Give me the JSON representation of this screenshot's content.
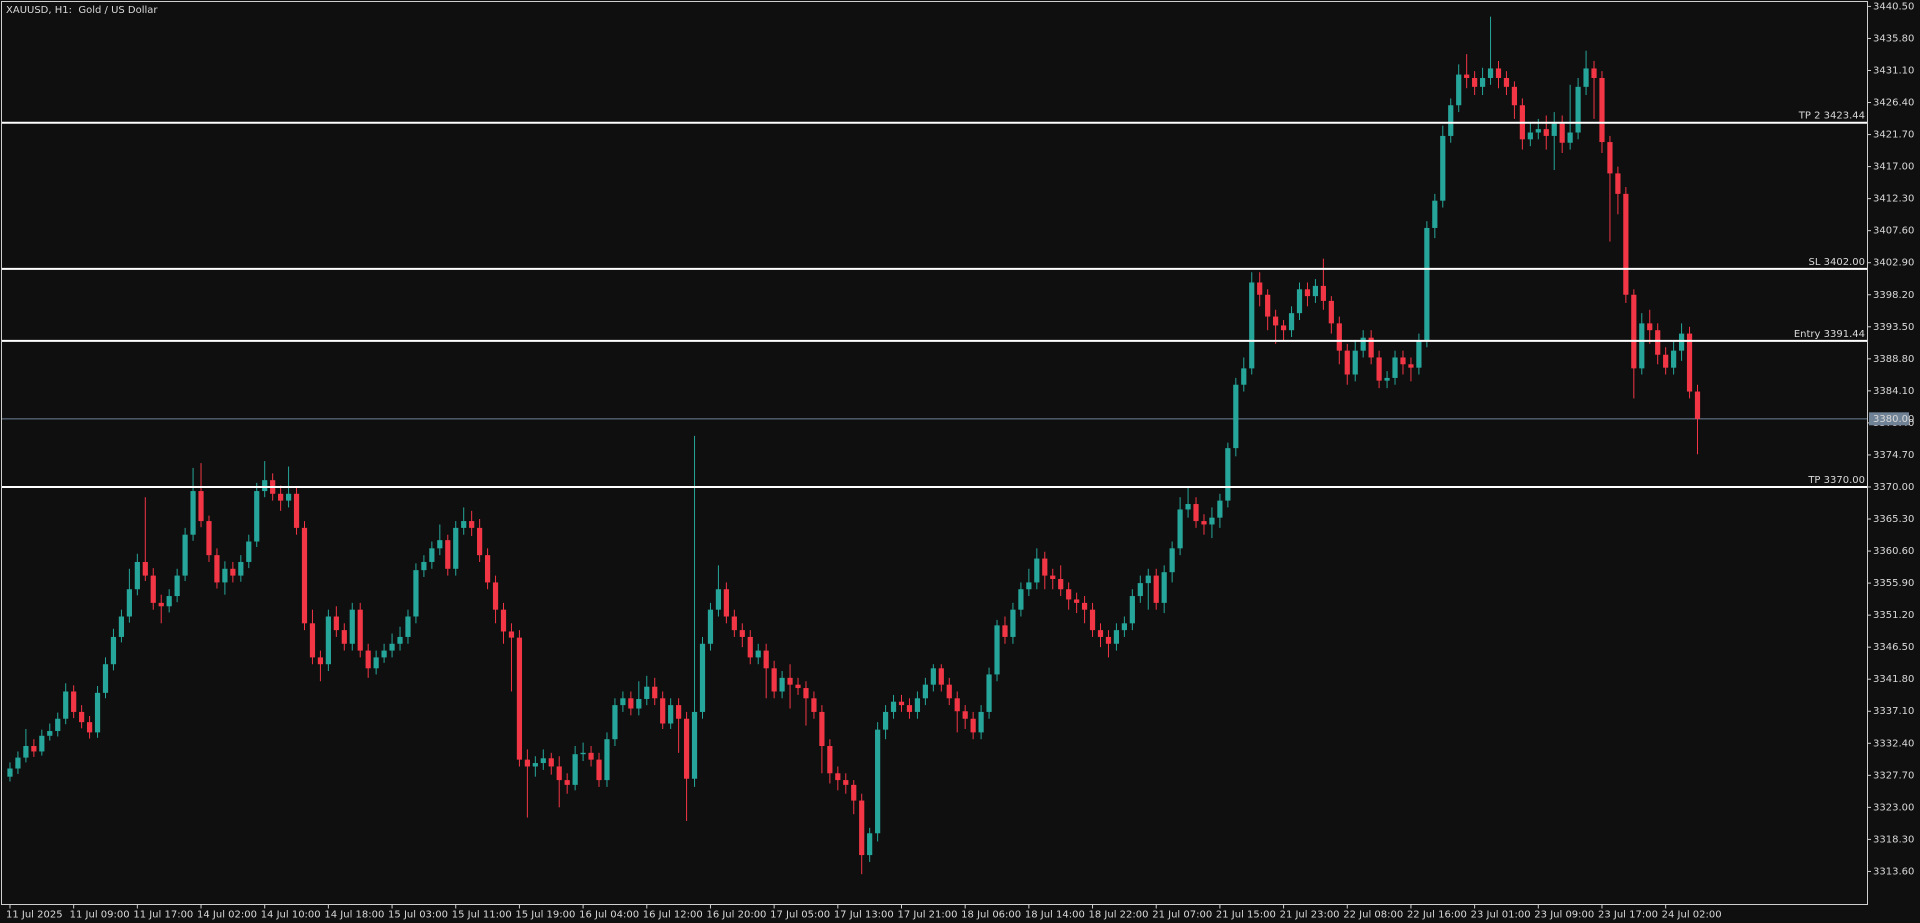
{
  "chart_data": {
    "type": "candlestick",
    "title": "XAUUSD, H1:  Gold / US Dollar",
    "categories": [
      "11 Jul 2025",
      null,
      null,
      null,
      null,
      null,
      null,
      null,
      "11 Jul 09:00",
      null,
      null,
      null,
      null,
      null,
      null,
      null,
      "11 Jul 17:00",
      null,
      null,
      null,
      null,
      null,
      null,
      null,
      "14 Jul 02:00",
      null,
      null,
      null,
      null,
      null,
      null,
      null,
      "14 Jul 10:00",
      null,
      null,
      null,
      null,
      null,
      null,
      null,
      "14 Jul 18:00",
      null,
      null,
      null,
      null,
      null,
      null,
      null,
      "15 Jul 03:00",
      null,
      null,
      null,
      null,
      null,
      null,
      null,
      "15 Jul 11:00",
      null,
      null,
      null,
      null,
      null,
      null,
      null,
      "15 Jul 19:00",
      null,
      null,
      null,
      null,
      null,
      null,
      null,
      "16 Jul 04:00",
      null,
      null,
      null,
      null,
      null,
      null,
      null,
      "16 Jul 12:00",
      null,
      null,
      null,
      null,
      null,
      null,
      null,
      "16 Jul 20:00",
      null,
      null,
      null,
      null,
      null,
      null,
      null,
      "17 Jul 05:00",
      null,
      null,
      null,
      null,
      null,
      null,
      null,
      "17 Jul 13:00",
      null,
      null,
      null,
      null,
      null,
      null,
      null,
      "17 Jul 21:00",
      null,
      null,
      null,
      null,
      null,
      null,
      null,
      "18 Jul 06:00",
      null,
      null,
      null,
      null,
      null,
      null,
      null,
      "18 Jul 14:00",
      null,
      null,
      null,
      null,
      null,
      null,
      null,
      "18 Jul 22:00",
      null,
      null,
      null,
      null,
      null,
      null,
      null,
      "21 Jul 07:00",
      null,
      null,
      null,
      null,
      null,
      null,
      null,
      "21 Jul 15:00",
      null,
      null,
      null,
      null,
      null,
      null,
      null,
      "21 Jul 23:00",
      null,
      null,
      null,
      null,
      null,
      null,
      null,
      "22 Jul 08:00",
      null,
      null,
      null,
      null,
      null,
      null,
      null,
      "22 Jul 16:00",
      null,
      null,
      null,
      null,
      null,
      null,
      null,
      "23 Jul 01:00",
      null,
      null,
      null,
      null,
      null,
      null,
      null,
      "23 Jul 09:00",
      null,
      null,
      null,
      null,
      null,
      null,
      null,
      "23 Jul 17:00",
      null,
      null,
      null,
      null,
      null,
      null,
      null,
      "24 Jul 02:00",
      null,
      null,
      null,
      null
    ],
    "open": [
      3327.5,
      3328.7,
      3330.3,
      3332,
      3331.2,
      3333.5,
      3334.2,
      3336,
      3340,
      3337,
      3335.5,
      3334,
      3339.8,
      3344,
      3348,
      3351,
      3355,
      3359,
      3357,
      3353,
      3352.5,
      3354,
      3357,
      3363,
      3369.4,
      3365,
      3360,
      3356,
      3358,
      3357,
      3359,
      3362,
      3369.4,
      3371,
      3369,
      3368,
      3369,
      3364,
      3350,
      3345,
      3344,
      3351,
      3349,
      3347,
      3352,
      3346,
      3343.4,
      3345,
      3346,
      3347,
      3348,
      3351,
      3357.8,
      3359,
      3361,
      3362.2,
      3358,
      3364,
      3365,
      3364,
      3360,
      3356,
      3352,
      3348.8,
      3347.9,
      3330,
      3329,
      3329.5,
      3330.2,
      3329,
      3327,
      3326.3,
      3330.8,
      3331,
      3330,
      3327,
      3333,
      3338,
      3339,
      3337.5,
      3338.9,
      3340.7,
      3339,
      3335.3,
      3338,
      3336,
      3327.2,
      3337,
      3347,
      3352,
      3355,
      3351,
      3349,
      3348,
      3345,
      3346,
      3343.4,
      3340,
      3342,
      3341,
      3340.5,
      3339,
      3337,
      3332,
      3328,
      3327,
      3326.3,
      3324,
      3316,
      3319.2,
      3334.4,
      3337,
      3338.5,
      3338,
      3337,
      3339,
      3341,
      3343.4,
      3341,
      3339,
      3337.1,
      3336,
      3334,
      3337,
      3342.5,
      3349.7,
      3348,
      3352,
      3355,
      3356,
      3359.5,
      3357,
      3356.5,
      3355,
      3353.5,
      3353,
      3352,
      3349,
      3348,
      3347,
      3349,
      3350,
      3354,
      3355.9,
      3357,
      3353,
      3357.5,
      3361,
      3366.7,
      3367.5,
      3365,
      3364.5,
      3365.5,
      3368,
      3375.7,
      3385,
      3387.4,
      3400,
      3398.2,
      3395,
      3393.7,
      3393,
      3395.5,
      3399,
      3398,
      3399.5,
      3397.3,
      3394,
      3390,
      3386.5,
      3390,
      3391.9,
      3389,
      3385.6,
      3386,
      3389,
      3388,
      3387.5,
      3391.5,
      3408,
      3412,
      3421.5,
      3426,
      3430.5,
      3430,
      3428.7,
      3430,
      3431.4,
      3430,
      3428.7,
      3426,
      3421,
      3422,
      3422.5,
      3421.5,
      3423.3,
      3420.5,
      3422,
      3428.7,
      3431.4,
      3430,
      3420.6,
      3416,
      3413,
      3398.2,
      3387.4,
      3394,
      3393,
      3389.4,
      3387.5,
      3390,
      3392.5,
      3384
    ],
    "high": [
      3329.6,
      3331.2,
      3334.5,
      3333,
      3334.4,
      3335.3,
      3336.9,
      3341.2,
      3340.9,
      3338,
      3336.4,
      3340.8,
      3345,
      3349.2,
      3352,
      3358,
      3360.2,
      3368.5,
      3358.1,
      3354.2,
      3355,
      3358,
      3364,
      3372.8,
      3373.5,
      3365.8,
      3361,
      3359.1,
      3359,
      3360,
      3363,
      3370.6,
      3373.8,
      3372,
      3370.2,
      3373,
      3370,
      3365,
      3352,
      3346,
      3352,
      3352.5,
      3350,
      3353,
      3353,
      3347,
      3346,
      3347,
      3348.5,
      3349.5,
      3352,
      3358.8,
      3360,
      3362,
      3364.5,
      3363,
      3365,
      3367,
      3366.5,
      3365.3,
      3361,
      3357,
      3353,
      3350,
      3349,
      3331.5,
      3330.5,
      3331.5,
      3331,
      3330.5,
      3328,
      3332,
      3332.5,
      3332,
      3331,
      3334,
      3339,
      3340,
      3340,
      3341.5,
      3342.3,
      3342,
      3340,
      3339,
      3339,
      3337,
      3377.5,
      3348,
      3353,
      3358.5,
      3356,
      3352,
      3350,
      3349,
      3347,
      3347,
      3344.5,
      3343,
      3344,
      3342,
      3341.5,
      3340,
      3338,
      3333,
      3329,
      3328,
      3327,
      3325,
      3320,
      3335.5,
      3338,
      3339.5,
      3339.5,
      3339,
      3340,
      3342,
      3344,
      3344,
      3342,
      3340,
      3338,
      3337,
      3338,
      3343.5,
      3350.5,
      3351,
      3353,
      3356,
      3358,
      3361,
      3360.5,
      3358,
      3358.5,
      3356,
      3354.5,
      3354,
      3353,
      3350,
      3349,
      3350,
      3351,
      3355,
      3357,
      3358,
      3358,
      3358.5,
      3362,
      3368.5,
      3370,
      3368.5,
      3366,
      3367,
      3369,
      3376.5,
      3386,
      3389,
      3401.5,
      3401.5,
      3399,
      3396,
      3394.5,
      3396.5,
      3400,
      3400,
      3400.5,
      3403.5,
      3398,
      3395,
      3391,
      3391.5,
      3393,
      3393,
      3390,
      3387,
      3390,
      3390,
      3389,
      3392.5,
      3409,
      3413,
      3423,
      3427,
      3432,
      3433.5,
      3431,
      3431.5,
      3439,
      3432.5,
      3431,
      3429.5,
      3427,
      3423.5,
      3424,
      3424.5,
      3425,
      3424.5,
      3429,
      3430,
      3434,
      3432.5,
      3431,
      3421.5,
      3417,
      3414,
      3399,
      3395.5,
      3396,
      3394,
      3390.5,
      3391.5,
      3394,
      3393.5,
      3385
    ],
    "low": [
      3326.8,
      3327.9,
      3329.6,
      3330.4,
      3330.6,
      3332.8,
      3333.4,
      3335.2,
      3336.1,
      3334.6,
      3333.1,
      3333.2,
      3339,
      3343.1,
      3347.2,
      3350.1,
      3354.1,
      3356.2,
      3352,
      3350,
      3351.6,
      3353.1,
      3356.2,
      3362.1,
      3364.1,
      3359,
      3355.1,
      3354.2,
      3356,
      3356.1,
      3358.1,
      3361.2,
      3368.5,
      3368,
      3366.5,
      3367,
      3363,
      3349,
      3344,
      3341.5,
      3343,
      3348,
      3346,
      3346,
      3345,
      3342,
      3342.5,
      3344.2,
      3345,
      3346,
      3347,
      3350,
      3356.8,
      3358,
      3360,
      3357,
      3357,
      3363,
      3362.8,
      3359,
      3355,
      3350,
      3347,
      3340,
      3329,
      3321.5,
      3327.5,
      3328.5,
      3327.8,
      3323,
      3325,
      3325.5,
      3329.8,
      3329,
      3326,
      3326,
      3332,
      3337,
      3336.5,
      3336.5,
      3338,
      3338,
      3334.5,
      3334.5,
      3331,
      3321,
      3326,
      3336,
      3346,
      3351,
      3350,
      3348,
      3346.5,
      3344,
      3344,
      3339,
      3339,
      3339,
      3337.5,
      3339.5,
      3335,
      3336,
      3328,
      3326.5,
      3325.5,
      3325,
      3322,
      3313.2,
      3315,
      3318,
      3333,
      3336,
      3337,
      3336,
      3336,
      3338,
      3340,
      3340,
      3338,
      3334,
      3334.5,
      3333,
      3333,
      3336,
      3341.5,
      3347,
      3347,
      3351,
      3354,
      3355,
      3355,
      3355,
      3354,
      3352,
      3351.5,
      3350,
      3348,
      3346.5,
      3345,
      3346,
      3348,
      3349,
      3353,
      3352,
      3352,
      3351.5,
      3356,
      3360,
      3365.5,
      3364,
      3363,
      3362.5,
      3364,
      3367,
      3374.5,
      3384,
      3386.5,
      3396.5,
      3393,
      3391,
      3391.5,
      3392,
      3394.5,
      3396.5,
      3397,
      3396,
      3392.5,
      3388,
      3385,
      3385.5,
      3389,
      3388,
      3384.5,
      3384.5,
      3385,
      3386.5,
      3385.5,
      3386.5,
      3390.5,
      3406.5,
      3411,
      3420.5,
      3425,
      3428.5,
      3427.5,
      3427.5,
      3429,
      3428.5,
      3427.5,
      3424,
      3419.5,
      3420,
      3421,
      3419.5,
      3416.5,
      3419,
      3419.5,
      3421,
      3427.5,
      3424,
      3419,
      3406,
      3410,
      3397,
      3383,
      3386.5,
      3391,
      3388,
      3386.5,
      3386.5,
      3388.5,
      3383,
      3374.8
    ],
    "close": [
      3328.7,
      3330.3,
      3332,
      3331.2,
      3333.5,
      3334.2,
      3336,
      3340,
      3337,
      3335.5,
      3334,
      3339.8,
      3344,
      3348,
      3351,
      3355,
      3359,
      3357,
      3353,
      3352.5,
      3354,
      3357,
      3363,
      3369.4,
      3365,
      3360,
      3356,
      3358,
      3357,
      3359,
      3362,
      3369.4,
      3371,
      3369,
      3368,
      3369,
      3364,
      3350,
      3345,
      3344,
      3351,
      3349,
      3347,
      3352,
      3346,
      3343.4,
      3345,
      3346,
      3347,
      3348,
      3351,
      3357.8,
      3359,
      3361,
      3362.2,
      3358,
      3364,
      3365,
      3364,
      3360,
      3356,
      3352,
      3348.8,
      3347.9,
      3330,
      3329,
      3329.5,
      3330.2,
      3329,
      3327,
      3326.3,
      3330.8,
      3331,
      3330,
      3327,
      3333,
      3338,
      3339,
      3337.5,
      3338.9,
      3340.7,
      3339,
      3335.3,
      3338,
      3336,
      3327.2,
      3337,
      3347,
      3352,
      3355,
      3351,
      3349,
      3348,
      3345,
      3346,
      3343.4,
      3340,
      3342,
      3341,
      3340.5,
      3339,
      3337,
      3332,
      3328,
      3327,
      3326.3,
      3324,
      3316,
      3319.2,
      3334.4,
      3337,
      3338.5,
      3338,
      3337,
      3339,
      3341,
      3343.4,
      3341,
      3339,
      3337.1,
      3336,
      3334,
      3337,
      3342.5,
      3349.7,
      3348,
      3352,
      3355,
      3356,
      3359.5,
      3357,
      3356.5,
      3355,
      3353.5,
      3353,
      3352,
      3349,
      3348,
      3347,
      3349,
      3350,
      3354,
      3355.9,
      3357,
      3353,
      3357.5,
      3361,
      3366.7,
      3367.5,
      3365,
      3364.5,
      3365.5,
      3368,
      3375.7,
      3385,
      3387.4,
      3400,
      3398.2,
      3395,
      3393.7,
      3393,
      3395.5,
      3399,
      3398,
      3399.5,
      3397.3,
      3394,
      3390,
      3386.5,
      3390,
      3391.9,
      3389,
      3385.6,
      3386,
      3389,
      3388,
      3387.5,
      3391.5,
      3408,
      3412,
      3421.5,
      3426,
      3430.5,
      3430,
      3428.7,
      3430,
      3431.4,
      3430,
      3428.7,
      3426,
      3421,
      3422,
      3422.5,
      3421.5,
      3423.3,
      3420.5,
      3422,
      3428.7,
      3431.4,
      3430,
      3420.6,
      3416,
      3413,
      3398.2,
      3387.4,
      3394,
      3393,
      3389.4,
      3387.5,
      3390,
      3392.5,
      3384,
      3380
    ],
    "up_color": "#26a69a",
    "down_color": "#f23645",
    "ylim": [
      3308.75,
      3441.22
    ],
    "yticks": [
      {
        "value": 3440.5,
        "label": "3440.50"
      },
      {
        "value": 3435.8,
        "label": "3435.80"
      },
      {
        "value": 3431.1,
        "label": "3431.10"
      },
      {
        "value": 3426.4,
        "label": "3426.40"
      },
      {
        "value": 3421.7,
        "label": "3421.70"
      },
      {
        "value": 3417,
        "label": "3417.00"
      },
      {
        "value": 3412.3,
        "label": "3412.30"
      },
      {
        "value": 3407.6,
        "label": "3407.60"
      },
      {
        "value": 3402.9,
        "label": "3402.90"
      },
      {
        "value": 3398.2,
        "label": "3398.20"
      },
      {
        "value": 3393.5,
        "label": "3393.50"
      },
      {
        "value": 3388.8,
        "label": "3388.80"
      },
      {
        "value": 3384.1,
        "label": "3384.10"
      },
      {
        "value": 3379.4,
        "label": "3379.40"
      },
      {
        "value": 3374.7,
        "label": "3374.70"
      },
      {
        "value": 3370,
        "label": "3370.00"
      },
      {
        "value": 3365.3,
        "label": "3365.30"
      },
      {
        "value": 3360.6,
        "label": "3360.60"
      },
      {
        "value": 3355.9,
        "label": "3355.90"
      },
      {
        "value": 3351.2,
        "label": "3351.20"
      },
      {
        "value": 3346.5,
        "label": "3346.50"
      },
      {
        "value": 3341.8,
        "label": "3341.80"
      },
      {
        "value": 3337.1,
        "label": "3337.10"
      },
      {
        "value": 3332.4,
        "label": "3332.40"
      },
      {
        "value": 3327.7,
        "label": "3327.70"
      },
      {
        "value": 3323,
        "label": "3323.00"
      },
      {
        "value": 3318.3,
        "label": "3318.30"
      },
      {
        "value": 3313.6,
        "label": "3313.60"
      }
    ],
    "grid": false,
    "levels": [
      {
        "value": 3423.44,
        "label": "TP 2 3423.44"
      },
      {
        "value": 3402,
        "label": "SL 3402.00"
      },
      {
        "value": 3391.44,
        "label": "Entry 3391.44"
      },
      {
        "value": 3370,
        "label": "TP 3370.00"
      }
    ],
    "level_color": "#ffffff",
    "current_price": {
      "value": 3380,
      "label": "3380.00"
    },
    "current_price_color": "#6f8296"
  }
}
